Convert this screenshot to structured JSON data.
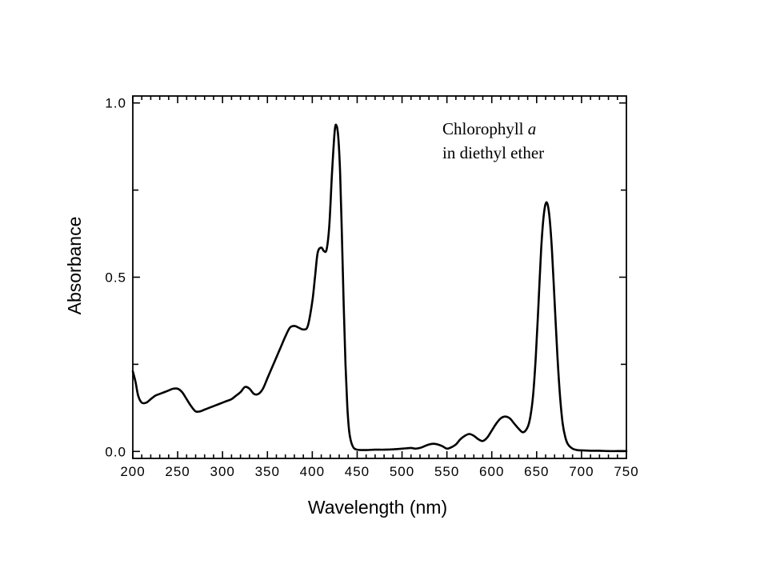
{
  "chart_data": {
    "type": "line",
    "title": "",
    "xlabel": "Wavelength (nm)",
    "ylabel": "Absorbance",
    "xlim": [
      200,
      750
    ],
    "ylim": [
      -0.02,
      1.02
    ],
    "x_ticks": [
      200,
      250,
      300,
      350,
      400,
      450,
      500,
      550,
      600,
      650,
      700,
      750
    ],
    "x_tick_labels": [
      "200",
      "250",
      "300",
      "350",
      "400",
      "450",
      "500",
      "550",
      "600",
      "650",
      "700",
      "750"
    ],
    "y_ticks": [
      0,
      0.5,
      1
    ],
    "y_tick_labels": [
      "0.0",
      "0.5",
      "1.0"
    ],
    "y_minor_ticks": [
      0.25,
      0.75
    ],
    "grid": false,
    "legend": "none",
    "annotation": {
      "line1_text": "Chlorophyll ",
      "line1_italic": "a",
      "line2_text": "in diethyl ether",
      "x": 545,
      "y": 0.91
    },
    "series": [
      {
        "color": "#000000",
        "x": [
          200,
          203,
          206,
          210,
          215,
          220,
          225,
          230,
          235,
          240,
          245,
          250,
          255,
          260,
          265,
          270,
          275,
          280,
          285,
          290,
          295,
          300,
          305,
          310,
          315,
          320,
          325,
          330,
          335,
          340,
          345,
          350,
          355,
          360,
          365,
          370,
          375,
          380,
          385,
          390,
          395,
          400,
          403,
          406,
          410,
          413,
          416,
          419,
          422,
          425,
          427,
          429,
          431,
          433,
          435,
          437,
          439,
          441,
          443,
          445,
          447,
          450,
          455,
          460,
          470,
          480,
          490,
          500,
          505,
          510,
          515,
          520,
          525,
          530,
          535,
          540,
          545,
          550,
          555,
          560,
          565,
          570,
          575,
          580,
          585,
          590,
          595,
          600,
          605,
          610,
          615,
          620,
          625,
          630,
          635,
          640,
          643,
          646,
          649,
          652,
          655,
          658,
          661,
          664,
          667,
          670,
          673,
          676,
          679,
          682,
          685,
          690,
          695,
          700,
          710,
          720,
          730,
          740,
          750
        ],
        "y": [
          0.23,
          0.2,
          0.16,
          0.14,
          0.14,
          0.15,
          0.16,
          0.165,
          0.17,
          0.175,
          0.18,
          0.18,
          0.17,
          0.15,
          0.13,
          0.115,
          0.115,
          0.12,
          0.125,
          0.13,
          0.135,
          0.14,
          0.145,
          0.15,
          0.16,
          0.17,
          0.185,
          0.18,
          0.165,
          0.165,
          0.18,
          0.21,
          0.24,
          0.27,
          0.3,
          0.33,
          0.355,
          0.36,
          0.355,
          0.35,
          0.36,
          0.43,
          0.5,
          0.57,
          0.585,
          0.575,
          0.58,
          0.65,
          0.8,
          0.92,
          0.935,
          0.9,
          0.8,
          0.62,
          0.42,
          0.25,
          0.13,
          0.06,
          0.03,
          0.015,
          0.008,
          0.005,
          0.004,
          0.004,
          0.005,
          0.005,
          0.006,
          0.008,
          0.009,
          0.01,
          0.008,
          0.01,
          0.015,
          0.02,
          0.022,
          0.02,
          0.015,
          0.008,
          0.012,
          0.02,
          0.035,
          0.045,
          0.05,
          0.045,
          0.035,
          0.03,
          0.04,
          0.06,
          0.08,
          0.095,
          0.1,
          0.095,
          0.08,
          0.065,
          0.055,
          0.07,
          0.1,
          0.16,
          0.27,
          0.42,
          0.58,
          0.68,
          0.715,
          0.68,
          0.58,
          0.43,
          0.28,
          0.16,
          0.08,
          0.04,
          0.02,
          0.008,
          0.004,
          0.003,
          0.002,
          0.002,
          0.001,
          0.001,
          0.001
        ]
      }
    ]
  }
}
